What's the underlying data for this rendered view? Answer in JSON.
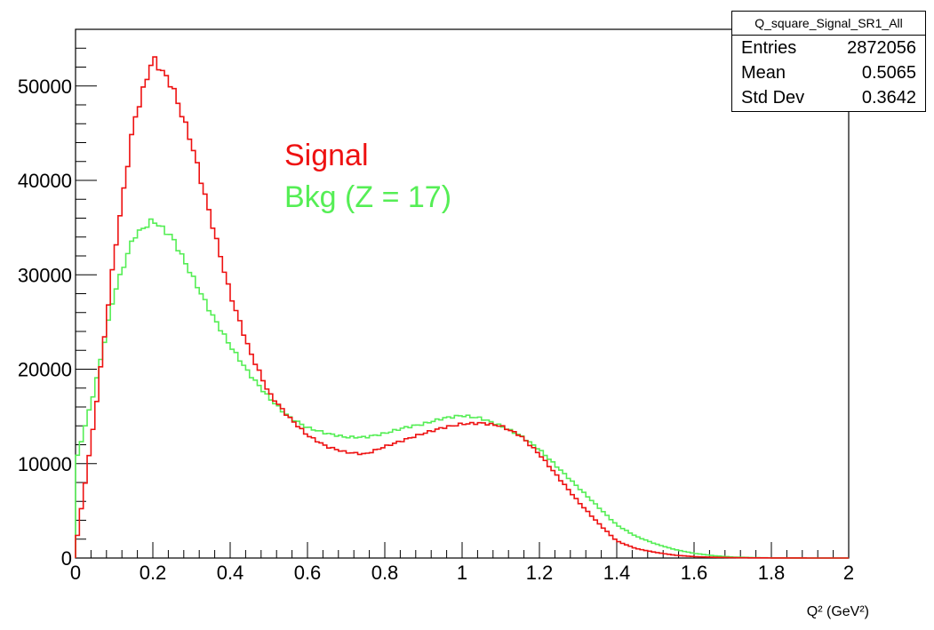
{
  "chart_data": {
    "type": "histogram",
    "xlabel": "Q² (GeV²)",
    "ylabel": "",
    "xlim": [
      0,
      2
    ],
    "ylim": [
      0,
      56000
    ],
    "x_ticks": [
      "0",
      "0.2",
      "0.4",
      "0.6",
      "0.8",
      "1",
      "1.2",
      "1.4",
      "1.6",
      "1.8",
      "2"
    ],
    "y_ticks": [
      "0",
      "10000",
      "20000",
      "30000",
      "40000",
      "50000"
    ],
    "grid": false,
    "legend": [
      {
        "label": "Signal",
        "color": "#ee1111"
      },
      {
        "label": "Bkg (Z = 17)",
        "color": "#55ee55"
      }
    ],
    "stats_box": {
      "title": "Q_square_Signal_SR1_All",
      "rows": [
        {
          "label": "Entries",
          "value": "2872056"
        },
        {
          "label": "Mean",
          "value": "0.5065"
        },
        {
          "label": "Std Dev",
          "value": "0.3642"
        }
      ]
    },
    "series": [
      {
        "name": "Signal",
        "color": "#ee1111",
        "x": [
          0.0,
          0.05,
          0.1,
          0.15,
          0.2,
          0.25,
          0.3,
          0.35,
          0.4,
          0.45,
          0.5,
          0.55,
          0.6,
          0.65,
          0.7,
          0.75,
          0.8,
          0.85,
          0.9,
          0.95,
          1.0,
          1.05,
          1.1,
          1.15,
          1.2,
          1.25,
          1.3,
          1.35,
          1.4,
          1.45,
          1.5,
          1.55,
          1.6,
          1.65,
          1.7,
          1.75,
          1.8,
          1.85,
          1.9,
          1.95,
          2.0
        ],
        "values": [
          1000,
          15000,
          32000,
          46000,
          53000,
          50000,
          44000,
          36000,
          28000,
          22000,
          17500,
          15000,
          13000,
          11800,
          11200,
          11000,
          11800,
          12500,
          13200,
          13800,
          14200,
          14300,
          14000,
          13000,
          11000,
          8500,
          6000,
          3800,
          1800,
          1000,
          600,
          300,
          150,
          80,
          40,
          20,
          10,
          5,
          0,
          0,
          0
        ]
      },
      {
        "name": "Bkg (Z = 17)",
        "color": "#55ee55",
        "x": [
          0.0,
          0.05,
          0.1,
          0.15,
          0.2,
          0.25,
          0.3,
          0.35,
          0.4,
          0.45,
          0.5,
          0.55,
          0.6,
          0.65,
          0.7,
          0.75,
          0.8,
          0.85,
          0.9,
          0.95,
          1.0,
          1.05,
          1.1,
          1.15,
          1.2,
          1.25,
          1.3,
          1.35,
          1.4,
          1.45,
          1.5,
          1.55,
          1.6,
          1.65,
          1.7,
          1.75,
          1.8,
          1.85,
          1.9,
          1.95,
          2.0
        ],
        "values": [
          10000,
          18000,
          28000,
          34000,
          35800,
          34000,
          30000,
          26000,
          22500,
          19500,
          17000,
          15000,
          13800,
          13200,
          12800,
          12800,
          13200,
          13800,
          14200,
          14800,
          15100,
          14800,
          14000,
          13000,
          11500,
          9500,
          7500,
          5500,
          3500,
          2300,
          1500,
          900,
          500,
          250,
          100,
          50,
          20,
          10,
          0,
          0,
          0
        ]
      }
    ]
  }
}
